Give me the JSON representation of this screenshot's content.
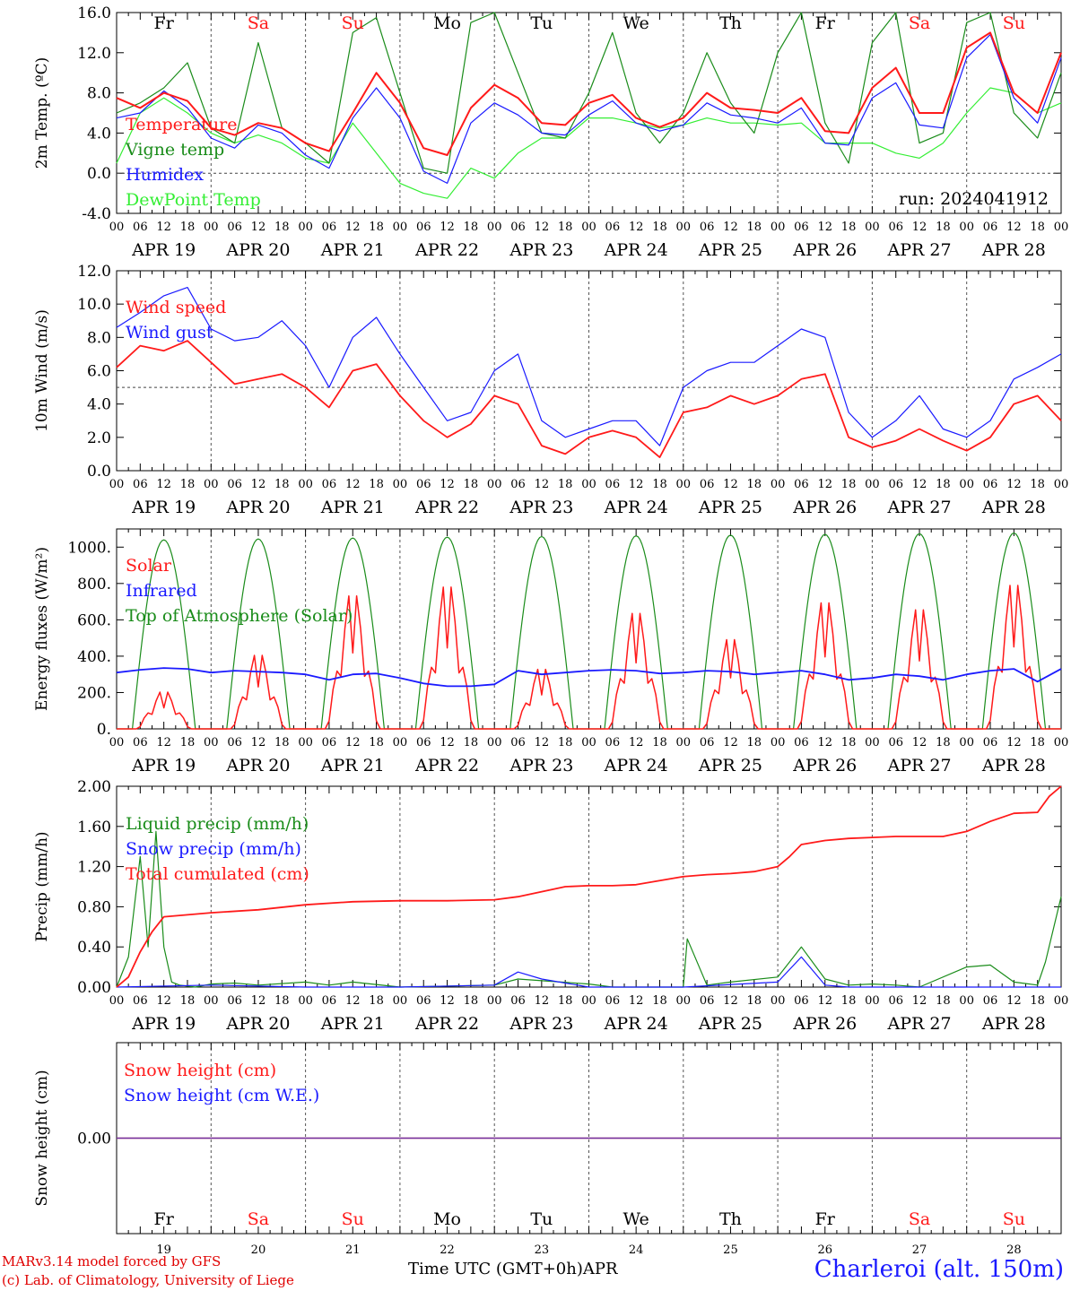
{
  "footer": {
    "model": "MARv3.14 model forced by GFS",
    "copyright": "(c) Lab. of Climatology, University of Liege",
    "time_label": "Time UTC (GMT+0h)",
    "month": "APR",
    "station": "Charleroi (alt. 150m)"
  },
  "days": {
    "names": [
      "Fr",
      "Sa",
      "Su",
      "Mo",
      "Tu",
      "We",
      "Th",
      "Fr",
      "Sa",
      "Su"
    ],
    "weekend_flags": [
      false,
      true,
      true,
      false,
      false,
      false,
      false,
      false,
      true,
      true
    ],
    "dates": [
      "APR 19",
      "APR 20",
      "APR 21",
      "APR 22",
      "APR 23",
      "APR 24",
      "APR 25",
      "APR 26",
      "APR 27",
      "APR 28"
    ],
    "numbers": [
      "19",
      "20",
      "21",
      "22",
      "23",
      "24",
      "25",
      "26",
      "27",
      "28"
    ],
    "hour_ticks": [
      "00",
      "06",
      "12",
      "18"
    ],
    "end_tick": "00"
  },
  "colors": {
    "red": "#ff1a1a",
    "green": "#1a8c1a",
    "blue": "#1a1aff",
    "lightgreen": "#33ee33",
    "purple": "#7030a0"
  },
  "chart_data": [
    {
      "type": "line",
      "id": "temp",
      "ylabel": "2m Temp. (ºC)",
      "ylim": [
        -4,
        16
      ],
      "yticks": [
        "-4.0",
        "0.0",
        "4.0",
        "8.0",
        "12.0",
        "16.0"
      ],
      "ytick_values": [
        -4,
        0,
        4,
        8,
        12,
        16
      ],
      "reference_line": 0,
      "annotation": "run: 2024041912",
      "x_hours": [
        0,
        6,
        12,
        18,
        24,
        30,
        36,
        42,
        48,
        54,
        60,
        66,
        72,
        78,
        84,
        90,
        96,
        102,
        108,
        114,
        120,
        126,
        132,
        138,
        144,
        150,
        156,
        162,
        168,
        174,
        180,
        186,
        192,
        198,
        204,
        210,
        216,
        222,
        228,
        234,
        240
      ],
      "series": [
        {
          "name": "Temperature",
          "color": "red",
          "values": [
            7.5,
            6.5,
            8.0,
            7.2,
            4.5,
            3.8,
            5.0,
            4.5,
            3.0,
            2.2,
            6.0,
            10.0,
            7.0,
            2.5,
            1.8,
            6.5,
            8.8,
            7.5,
            5.0,
            4.8,
            7.0,
            7.8,
            5.5,
            4.6,
            5.5,
            8.0,
            6.5,
            6.3,
            6.0,
            7.5,
            4.2,
            4.0,
            8.5,
            10.5,
            6.0,
            6.0,
            12.5,
            14.0,
            8.0,
            6.0,
            12.0
          ]
        },
        {
          "name": "Vigne temp",
          "color": "green",
          "values": [
            6.0,
            7.0,
            8.5,
            11.0,
            4.5,
            3.0,
            13.0,
            4.5,
            3.0,
            1.0,
            14.0,
            15.5,
            8.0,
            0.5,
            0.0,
            15.0,
            16.0,
            10.0,
            4.0,
            3.5,
            8.0,
            14.0,
            6.0,
            3.0,
            6.0,
            12.0,
            7.0,
            4.0,
            12.0,
            16.0,
            5.0,
            1.0,
            13.0,
            16.0,
            3.0,
            4.0,
            15.0,
            16.0,
            6.0,
            3.5,
            10.0
          ]
        },
        {
          "name": "Humidex",
          "color": "blue",
          "values": [
            5.5,
            6.0,
            8.2,
            6.5,
            3.5,
            2.5,
            4.8,
            4.0,
            1.8,
            0.5,
            5.5,
            8.5,
            5.5,
            0.2,
            -1.0,
            5.0,
            7.0,
            5.8,
            4.0,
            3.8,
            5.8,
            7.2,
            5.0,
            4.2,
            4.8,
            7.0,
            5.8,
            5.5,
            5.0,
            6.5,
            3.0,
            2.8,
            7.5,
            9.0,
            4.8,
            4.5,
            11.5,
            13.8,
            7.5,
            5.0,
            11.5
          ]
        },
        {
          "name": "DewPoint Temp",
          "color": "lightgreen",
          "values": [
            1.0,
            6.0,
            7.5,
            6.0,
            4.0,
            3.0,
            3.8,
            3.0,
            1.5,
            1.0,
            5.0,
            2.0,
            -1.0,
            -2.0,
            -2.5,
            0.5,
            -0.5,
            2.0,
            3.5,
            3.5,
            5.5,
            5.5,
            5.0,
            4.5,
            4.8,
            5.5,
            5.0,
            5.0,
            4.8,
            5.0,
            3.0,
            3.0,
            3.0,
            2.0,
            1.5,
            3.0,
            6.0,
            8.5,
            8.0,
            6.0,
            7.0
          ]
        }
      ]
    },
    {
      "type": "line",
      "id": "wind",
      "ylabel": "10m Wind (m/s)",
      "ylim": [
        0,
        12
      ],
      "yticks": [
        "0.0",
        "2.0",
        "4.0",
        "6.0",
        "8.0",
        "10.0",
        "12.0"
      ],
      "ytick_values": [
        0,
        2,
        4,
        6,
        8,
        10,
        12
      ],
      "reference_line": 5,
      "x_hours": [
        0,
        6,
        12,
        18,
        24,
        30,
        36,
        42,
        48,
        54,
        60,
        66,
        72,
        78,
        84,
        90,
        96,
        102,
        108,
        114,
        120,
        126,
        132,
        138,
        144,
        150,
        156,
        162,
        168,
        174,
        180,
        186,
        192,
        198,
        204,
        210,
        216,
        222,
        228,
        234,
        240
      ],
      "series": [
        {
          "name": "Wind speed",
          "color": "red",
          "values": [
            6.2,
            7.5,
            7.2,
            7.8,
            6.5,
            5.2,
            5.5,
            5.8,
            5.0,
            3.8,
            6.0,
            6.4,
            4.5,
            3.0,
            2.0,
            2.8,
            4.5,
            4.0,
            1.5,
            1.0,
            2.0,
            2.4,
            2.0,
            0.8,
            3.5,
            3.8,
            4.5,
            4.0,
            4.5,
            5.5,
            5.8,
            2.0,
            1.4,
            1.8,
            2.5,
            1.8,
            1.2,
            2.0,
            4.0,
            4.5,
            3.0
          ]
        },
        {
          "name": "Wind gust",
          "color": "blue",
          "values": [
            8.6,
            9.5,
            10.5,
            11.0,
            8.5,
            7.8,
            8.0,
            9.0,
            7.5,
            5.0,
            8.0,
            9.2,
            7.0,
            5.0,
            3.0,
            3.5,
            6.0,
            7.0,
            3.0,
            2.0,
            2.5,
            3.0,
            3.0,
            1.5,
            5.0,
            6.0,
            6.5,
            6.5,
            7.5,
            8.5,
            8.0,
            3.5,
            2.0,
            3.0,
            4.5,
            2.5,
            2.0,
            3.0,
            5.5,
            6.2,
            7.0
          ]
        }
      ]
    },
    {
      "type": "line",
      "id": "energy",
      "ylabel": "Energy fluxes (W/m²)",
      "ylim": [
        0,
        1100
      ],
      "yticks": [
        "0.",
        "200.",
        "400.",
        "600.",
        "800.",
        "1000."
      ],
      "ytick_values": [
        0,
        200,
        400,
        600,
        800,
        1000
      ],
      "daylight_hours": [
        4,
        20
      ],
      "toa_peaks": [
        1040,
        1045,
        1050,
        1055,
        1058,
        1062,
        1066,
        1070,
        1074,
        1078
      ],
      "series": [
        {
          "name": "Solar",
          "color": "red",
          "day_peaks": [
            210,
            420,
            760,
            810,
            340,
            660,
            510,
            720,
            680,
            820
          ]
        },
        {
          "name": "Infrared",
          "color": "blue",
          "x_hours": [
            0,
            6,
            12,
            18,
            24,
            30,
            36,
            42,
            48,
            54,
            60,
            66,
            72,
            78,
            84,
            90,
            96,
            102,
            108,
            114,
            120,
            126,
            132,
            138,
            144,
            150,
            156,
            162,
            168,
            174,
            180,
            186,
            192,
            198,
            204,
            210,
            216,
            222,
            228,
            234,
            240
          ],
          "values": [
            310,
            325,
            335,
            330,
            310,
            320,
            315,
            310,
            300,
            270,
            300,
            305,
            280,
            250,
            235,
            235,
            245,
            320,
            300,
            310,
            320,
            325,
            320,
            305,
            310,
            320,
            315,
            300,
            310,
            320,
            300,
            270,
            280,
            300,
            290,
            270,
            300,
            320,
            330,
            260,
            330
          ]
        },
        {
          "name": "Top of Atmosphere (Solar)",
          "color": "green"
        }
      ]
    },
    {
      "type": "line",
      "id": "precip",
      "ylabel": "Precip (mm/h)",
      "ylim": [
        0,
        2
      ],
      "yticks": [
        "0.00",
        "0.40",
        "0.80",
        "1.20",
        "1.60",
        "2.00"
      ],
      "ytick_values": [
        0,
        0.4,
        0.8,
        1.2,
        1.6,
        2.0
      ],
      "series": [
        {
          "name": "Liquid precip (mm/h)",
          "color": "green",
          "x_hours": [
            0,
            3,
            6,
            8,
            10,
            12,
            14,
            16,
            20,
            24,
            30,
            36,
            48,
            54,
            60,
            72,
            96,
            102,
            120,
            126,
            132,
            144,
            145,
            150,
            156,
            168,
            174,
            180,
            186,
            192,
            198,
            204,
            216,
            222,
            228,
            234,
            236,
            240
          ],
          "values": [
            0,
            0.3,
            1.3,
            0.4,
            1.55,
            0.4,
            0.05,
            0.02,
            0,
            0.03,
            0.04,
            0.02,
            0.05,
            0.02,
            0.05,
            0,
            0.02,
            0.08,
            0.03,
            0,
            0,
            0,
            0.48,
            0.02,
            0.05,
            0.1,
            0.4,
            0.08,
            0.02,
            0.03,
            0.02,
            0,
            0.2,
            0.22,
            0.05,
            0.02,
            0.25,
            0.9
          ]
        },
        {
          "name": "Snow precip (mm/h)",
          "color": "blue",
          "x_hours": [
            0,
            24,
            48,
            72,
            96,
            102,
            108,
            120,
            144,
            168,
            174,
            180,
            186,
            192,
            216,
            240
          ],
          "values": [
            0,
            0.02,
            0,
            0,
            0.02,
            0.15,
            0.08,
            0,
            0,
            0.05,
            0.3,
            0.02,
            0,
            0,
            0,
            0
          ]
        },
        {
          "name": "Total cumulated (cm)",
          "color": "red",
          "x_hours": [
            0,
            3,
            6,
            9,
            12,
            18,
            24,
            36,
            48,
            60,
            72,
            84,
            96,
            102,
            108,
            114,
            120,
            126,
            132,
            144,
            150,
            156,
            162,
            168,
            171,
            174,
            180,
            186,
            192,
            198,
            204,
            210,
            216,
            222,
            228,
            234,
            237,
            240
          ],
          "values": [
            0,
            0.1,
            0.35,
            0.55,
            0.7,
            0.72,
            0.74,
            0.77,
            0.82,
            0.85,
            0.86,
            0.86,
            0.87,
            0.9,
            0.95,
            1.0,
            1.01,
            1.01,
            1.02,
            1.1,
            1.12,
            1.13,
            1.15,
            1.2,
            1.3,
            1.42,
            1.46,
            1.48,
            1.49,
            1.5,
            1.5,
            1.5,
            1.55,
            1.65,
            1.73,
            1.74,
            1.9,
            2.0
          ]
        }
      ]
    },
    {
      "type": "line",
      "id": "snow",
      "ylabel": "Snow height (cm)",
      "ylim": [
        -1,
        1
      ],
      "yticks": [
        "0.00"
      ],
      "ytick_values": [
        0
      ],
      "series": [
        {
          "name": "Snow height (cm)",
          "color": "red",
          "x_hours": [
            0,
            240
          ],
          "values": [
            0,
            0
          ]
        },
        {
          "name": "Snow height (cm W.E.)",
          "color": "blue",
          "x_hours": [
            0,
            240
          ],
          "values": [
            0,
            0
          ]
        }
      ]
    }
  ]
}
